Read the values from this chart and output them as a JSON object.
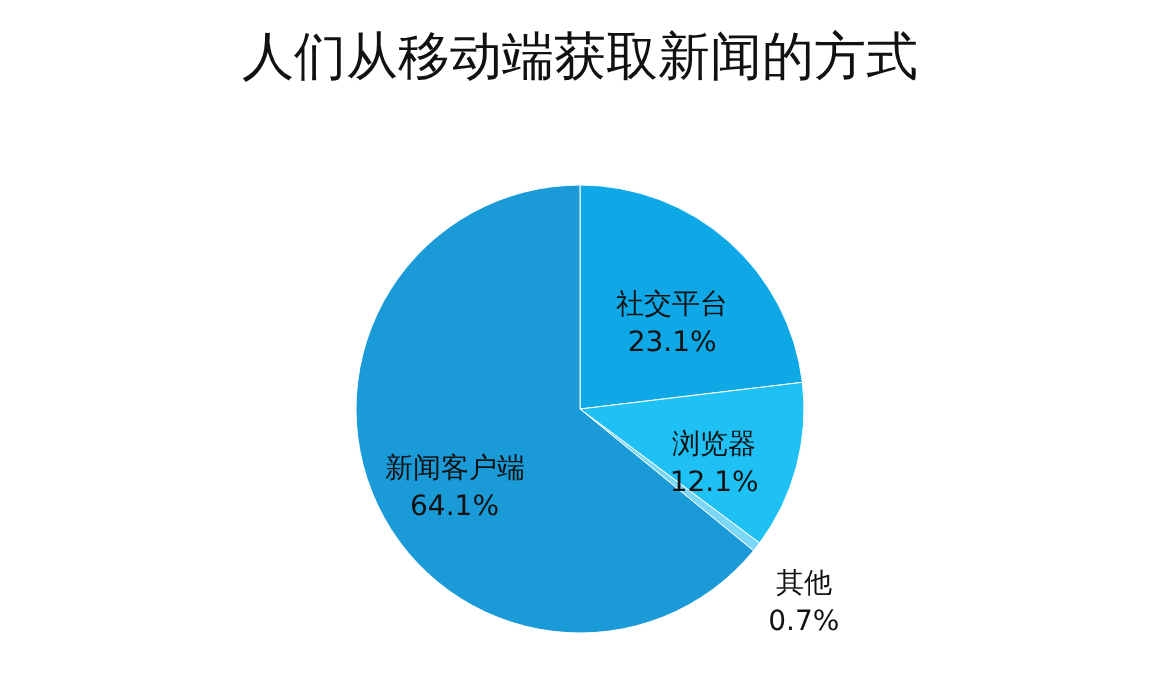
{
  "chart_data": {
    "type": "pie",
    "title": "人们从移动端获取新闻的方式",
    "categories": [
      "社交平台",
      "浏览器",
      "其他",
      "新闻客户端"
    ],
    "values": [
      23.1,
      12.1,
      0.7,
      64.1
    ],
    "value_labels": [
      "23.1%",
      "12.1%",
      "0.7%",
      "64.1%"
    ],
    "colors": [
      "#0fa8e6",
      "#1fc0f4",
      "#7cd6f6",
      "#1a9ad6"
    ],
    "legend": false
  }
}
